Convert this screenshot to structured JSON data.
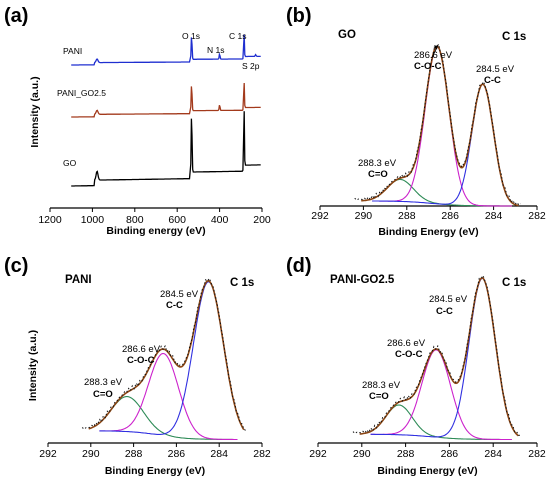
{
  "chart_data": [
    {
      "panel": "(a)",
      "type": "line",
      "xlabel": "Binding energy (eV)",
      "ylabel": "Intensity (a.u.)",
      "xlim": [
        1200,
        200
      ],
      "xticks": [
        "1200",
        "1000",
        "800",
        "600",
        "400",
        "200"
      ],
      "series": [
        {
          "name": "PANI",
          "color": "#1f2fd0"
        },
        {
          "name": "PANI_GO2.5",
          "color": "#a33a1c"
        },
        {
          "name": "GO",
          "color": "#000000"
        }
      ],
      "peak_labels": [
        "O 1s",
        "N 1s",
        "C 1s",
        "S 2p"
      ]
    },
    {
      "panel": "(b)",
      "type": "line",
      "sample": "GO",
      "region": "C 1s",
      "xlabel": "Binding Energy (eV)",
      "xlim": [
        292,
        282
      ],
      "xticks": [
        "292",
        "290",
        "288",
        "286",
        "284",
        "282"
      ],
      "peaks": [
        {
          "position": 288.3,
          "amplitude": 0.13,
          "sigma": 0.6,
          "color": "#2e8b57",
          "label1": "288.3 eV",
          "label2": "C=O"
        },
        {
          "position": 286.6,
          "amplitude": 0.93,
          "sigma": 0.55,
          "color": "#cc22cc",
          "label1": "286.6 eV",
          "label2": "C-O-C"
        },
        {
          "position": 284.5,
          "amplitude": 0.72,
          "sigma": 0.5,
          "color": "#3030e0",
          "label1": "284.5 eV",
          "label2": "C-C"
        }
      ]
    },
    {
      "panel": "(c)",
      "type": "line",
      "sample": "PANI",
      "region": "C 1s",
      "xlabel": "Binding Energy (eV)",
      "ylabel": "Intensity (a.u.)",
      "xlim": [
        292,
        282
      ],
      "xticks": [
        "292",
        "290",
        "288",
        "286",
        "284",
        "282"
      ],
      "peaks": [
        {
          "position": 288.3,
          "amplitude": 0.2,
          "sigma": 0.75,
          "color": "#2e8b57",
          "label1": "288.3 eV",
          "label2": "C=O"
        },
        {
          "position": 286.6,
          "amplitude": 0.47,
          "sigma": 0.7,
          "color": "#cc22cc",
          "label1": "286.6 eV",
          "label2": "C-O-C"
        },
        {
          "position": 284.5,
          "amplitude": 0.9,
          "sigma": 0.7,
          "color": "#3030e0",
          "label1": "284.5 eV",
          "label2": "C-C"
        }
      ]
    },
    {
      "panel": "(d)",
      "type": "line",
      "sample": "PANI-GO2.5",
      "region": "C 1s",
      "xlabel": "Binding Energy (eV)",
      "xlim": [
        292,
        282
      ],
      "xticks": [
        "292",
        "290",
        "288",
        "286",
        "284",
        "282"
      ],
      "peaks": [
        {
          "position": 288.3,
          "amplitude": 0.17,
          "sigma": 0.6,
          "color": "#2e8b57",
          "label1": "288.3 eV",
          "label2": "C=O"
        },
        {
          "position": 286.6,
          "amplitude": 0.5,
          "sigma": 0.65,
          "color": "#cc22cc",
          "label1": "286.6 eV",
          "label2": "C-O-C"
        },
        {
          "position": 284.5,
          "amplitude": 0.92,
          "sigma": 0.6,
          "color": "#3030e0",
          "label1": "284.5 eV",
          "label2": "C-C"
        }
      ]
    }
  ]
}
